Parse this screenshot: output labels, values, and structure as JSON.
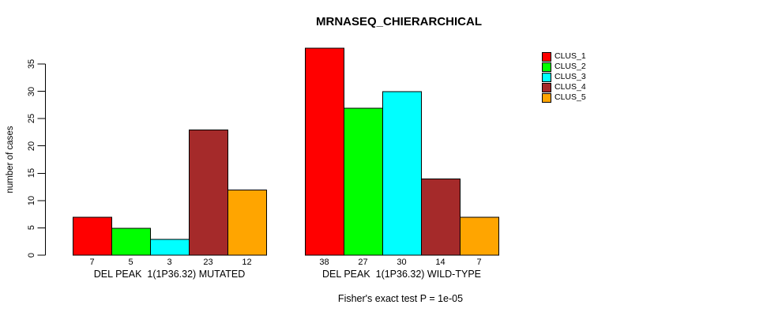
{
  "chart_data": {
    "type": "bar",
    "title": "MRNASEQ_CHIERARCHICAL",
    "ylabel": "number of cases",
    "xlabel": "",
    "ylim": [
      0,
      35
    ],
    "yticks": [
      0,
      5,
      10,
      15,
      20,
      25,
      30,
      35
    ],
    "grid": false,
    "legend_position": "top-right",
    "annotation": "Fisher's exact test P = 1e-05",
    "categories": [
      "DEL PEAK  1(1P36.32) MUTATED",
      "DEL PEAK  1(1P36.32) WILD-TYPE"
    ],
    "series": [
      {
        "name": "CLUS_1",
        "color": "#FF0000",
        "values": [
          7,
          38
        ]
      },
      {
        "name": "CLUS_2",
        "color": "#00FF00",
        "values": [
          5,
          27
        ]
      },
      {
        "name": "CLUS_3",
        "color": "#00FFFF",
        "values": [
          3,
          30
        ]
      },
      {
        "name": "CLUS_4",
        "color": "#A52A2A",
        "values": [
          23,
          14
        ]
      },
      {
        "name": "CLUS_5",
        "color": "#FFA500",
        "values": [
          12,
          7
        ]
      }
    ],
    "bar_value_labels_shown": true
  }
}
